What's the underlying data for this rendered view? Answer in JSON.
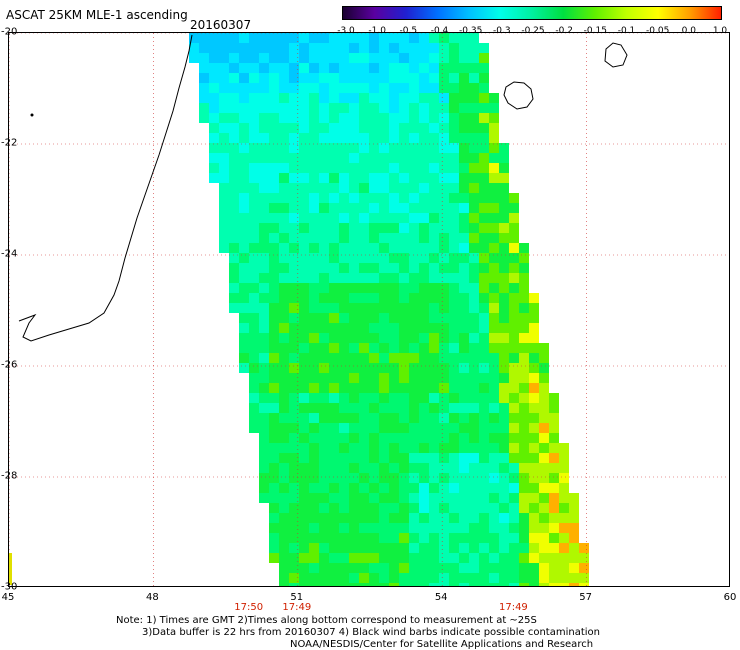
{
  "header": {
    "title": "ASCAT 25KM MLE-1 ascending",
    "date": "20160307"
  },
  "colorbar": {
    "labels": [
      "-3.0",
      "-1.0",
      "-0.5",
      "-0.4",
      "-0.35",
      "-0.3",
      "-0.25",
      "-0.2",
      "-0.15",
      "-0.1",
      "-0.05",
      "0.0",
      "1.0"
    ],
    "colors": [
      "#1a0030",
      "#5a00a0",
      "#2020d0",
      "#0070ff",
      "#00c0ff",
      "#00ffe8",
      "#00f0a0",
      "#00e040",
      "#60f000",
      "#c0ff00",
      "#ffff00",
      "#ffa000",
      "#ff2000"
    ]
  },
  "axes": {
    "lat_labels": [
      "-20",
      "-22",
      "-24",
      "-26",
      "-28",
      "-30"
    ],
    "lon_labels": [
      "45",
      "48",
      "51",
      "54",
      "57",
      "60"
    ],
    "lat_range": [
      -30,
      -20
    ],
    "lon_range": [
      45,
      60
    ]
  },
  "times": [
    {
      "label": "17:50",
      "lon": 50.0
    },
    {
      "label": "17:49",
      "lon": 51.0
    },
    {
      "label": "17:49",
      "lon": 55.5
    }
  ],
  "notes": {
    "line1": "Note: 1) Times are GMT 2)Times along bottom correspond to measurement at ~25S",
    "line2": "3)Data buffer is 22 hrs from 20160307 4) Black wind barbs indicate possible contamination",
    "line3": "NOAA/NESDIS/Center for Satellite Applications and Research"
  }
}
